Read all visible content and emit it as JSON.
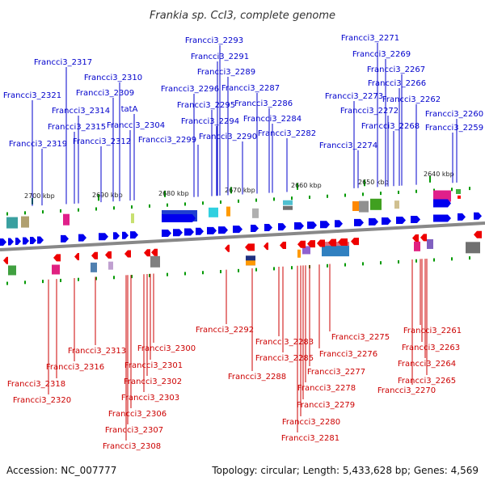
{
  "title": "Frankia sp. CcI3, complete genome",
  "footer": {
    "accession": "Accession: NC_007777",
    "topology": "Topology: circular; Length: 5,433,628 bp; Genes: 4,569"
  },
  "colors": {
    "forward_label": "#0000cc",
    "reverse_label": "#cc0000",
    "forward_gene": "#0000ee",
    "reverse_gene": "#ee0000",
    "backbone": "#888888",
    "tick": "#009900"
  },
  "scale_ticks": [
    "2700 kbp",
    "2690 kbp",
    "2680 kbp",
    "2670 kbp",
    "2660 kbp",
    "2650 kbp",
    "2640 kbp"
  ],
  "forward_labels": [
    "Francci3_2317",
    "Francci3_2321",
    "Francci3_2314",
    "Francci3_2315",
    "Francci3_2319",
    "Francci3_2310",
    "Francci3_2309",
    "tatA",
    "Francci3_2304",
    "Francci3_2312",
    "Francci3_2293",
    "Francci3_2291",
    "Francci3_2289",
    "Francci3_2296",
    "Francci3_2287",
    "Francci3_2295",
    "Francci3_2286",
    "Francci3_2294",
    "Francci3_2284",
    "Francci3_2299",
    "Francci3_2290",
    "Francci3_2282",
    "Francci3_2271",
    "Francci3_2269",
    "Francci3_2267",
    "Francci3_2266",
    "Francci3_2273",
    "Francci3_2262",
    "Francci3_2272",
    "Francci3_2260",
    "Francci3_2268",
    "Francci3_2259",
    "Francci3_2274"
  ],
  "reverse_labels": [
    "Francci3_2292",
    "Francci3_2283",
    "Francci3_2275",
    "Francci3_2261",
    "Francci3_2285",
    "Francci3_2276",
    "Francci3_2263",
    "Francci3_2313",
    "Francci3_2300",
    "Francci3_2301",
    "Francci3_2316",
    "Francci3_2288",
    "Francci3_2277",
    "Francci3_2264",
    "Francci3_2302",
    "Francci3_2265",
    "Francci3_2318",
    "Francci3_2278",
    "Francci3_2270",
    "Francci3_2303",
    "Francci3_2320",
    "Francci3_2279",
    "Francci3_2306",
    "Francci3_2280",
    "Francci3_2307",
    "Francci3_2281",
    "Francci3_2308"
  ]
}
